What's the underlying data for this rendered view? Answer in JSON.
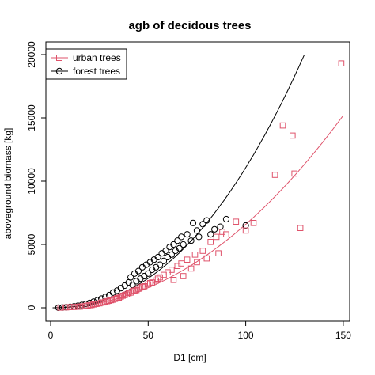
{
  "chart_data": {
    "type": "scatter",
    "title": "agb of decidous trees",
    "xlabel": "D1 [cm]",
    "ylabel": "aboveground biomass [kg]",
    "xlim": [
      0,
      155
    ],
    "ylim": [
      -700,
      20000
    ],
    "x_ticks": [
      "0",
      "50",
      "100",
      "150"
    ],
    "y_ticks": [
      "0",
      "5000",
      "10000",
      "15000",
      "20000"
    ],
    "x_tick_values": [
      0,
      50,
      100,
      150
    ],
    "y_tick_values": [
      0,
      5000,
      10000,
      15000,
      20000
    ],
    "grid": false,
    "legend": {
      "position": "top-left",
      "entries": [
        "urban trees",
        "forest trees"
      ]
    },
    "colors": {
      "urban": "#DF536B",
      "forest": "#000000"
    },
    "series": [
      {
        "name": "urban trees",
        "marker": "square",
        "x": [
          5,
          8,
          10,
          12,
          14,
          15,
          16,
          18,
          19,
          20,
          21,
          22,
          23,
          24,
          25,
          26,
          27,
          28,
          29,
          30,
          31,
          32,
          33,
          34,
          35,
          36,
          37,
          38,
          39,
          40,
          41,
          42,
          43,
          44,
          45,
          46,
          47,
          48,
          50,
          51,
          52,
          54,
          55,
          56,
          58,
          60,
          62,
          63,
          65,
          67,
          68,
          70,
          72,
          74,
          75,
          78,
          80,
          82,
          85,
          86,
          88,
          90,
          95,
          100,
          104,
          115,
          119,
          124,
          125,
          128,
          149
        ],
        "y": [
          10,
          30,
          50,
          60,
          80,
          90,
          110,
          150,
          170,
          200,
          220,
          260,
          300,
          310,
          350,
          400,
          420,
          470,
          520,
          550,
          600,
          640,
          700,
          760,
          800,
          880,
          950,
          1000,
          1050,
          1150,
          1200,
          1300,
          1350,
          1400,
          1500,
          1600,
          1650,
          1700,
          1850,
          1950,
          2000,
          2150,
          2300,
          2400,
          2600,
          2800,
          3000,
          2200,
          3300,
          3500,
          2500,
          3800,
          3100,
          4200,
          3600,
          4500,
          3900,
          5200,
          5600,
          4300,
          6000,
          5800,
          6800,
          6100,
          6700,
          10500,
          14400,
          13600,
          10600,
          6300,
          19300
        ]
      },
      {
        "name": "forest trees",
        "marker": "circle",
        "x": [
          4,
          6,
          8,
          10,
          12,
          14,
          16,
          18,
          20,
          22,
          24,
          26,
          28,
          30,
          32,
          34,
          36,
          38,
          40,
          41,
          42,
          43,
          44,
          45,
          46,
          47,
          48,
          49,
          50,
          51,
          52,
          53,
          54,
          55,
          56,
          57,
          58,
          59,
          60,
          61,
          62,
          63,
          64,
          65,
          66,
          67,
          68,
          70,
          72,
          73,
          75,
          76,
          78,
          80,
          82,
          84,
          87,
          90,
          100
        ],
        "y": [
          10,
          20,
          40,
          70,
          110,
          160,
          220,
          300,
          380,
          480,
          600,
          720,
          850,
          1000,
          1200,
          1350,
          1550,
          1750,
          2000,
          2400,
          1800,
          2700,
          2100,
          2900,
          2300,
          3200,
          2500,
          3400,
          2700,
          3600,
          3000,
          3800,
          3200,
          4000,
          3400,
          4300,
          3700,
          4500,
          4000,
          4800,
          4200,
          5000,
          4500,
          5300,
          4700,
          5600,
          5000,
          5800,
          5300,
          6700,
          6100,
          5600,
          6600,
          6900,
          5800,
          6200,
          6400,
          7000,
          6500
        ]
      }
    ],
    "fits": [
      {
        "series": "urban trees",
        "a": 0.5,
        "b": 2.06
      },
      {
        "series": "forest trees",
        "a": 0.35,
        "b": 2.25
      }
    ]
  }
}
